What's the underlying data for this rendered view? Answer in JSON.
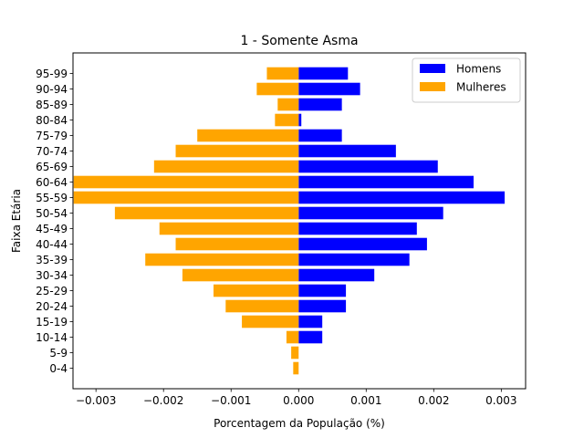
{
  "chart_data": {
    "type": "bar",
    "orientation": "horizontal",
    "title": "1 - Somente Asma",
    "xlabel": "Porcentagem da População (%)",
    "ylabel": "Faixa Etária",
    "categories": [
      "0-4",
      "5-9",
      "10-14",
      "15-19",
      "20-24",
      "25-29",
      "30-34",
      "35-39",
      "40-44",
      "45-49",
      "50-54",
      "55-59",
      "60-64",
      "65-69",
      "70-74",
      "75-79",
      "80-84",
      "85-89",
      "90-94",
      "95-99"
    ],
    "xlim": [
      -0.00334,
      0.00336
    ],
    "xticks": [
      -0.003,
      -0.002,
      -0.001,
      0.0,
      0.001,
      0.002,
      0.003
    ],
    "xtick_labels": [
      "−0.003",
      "−0.002",
      "−0.001",
      "0.000",
      "0.001",
      "0.002",
      "0.003"
    ],
    "grid": false,
    "legend_position": "upper-right",
    "series": [
      {
        "name": "Homens",
        "color": "#0000ff",
        "values": [
          0,
          0,
          0.00035,
          0.00035,
          0.0007,
          0.0007,
          0.00112,
          0.00164,
          0.0019,
          0.00175,
          0.00214,
          0.00305,
          0.00259,
          0.00206,
          0.00144,
          0.00064,
          4e-05,
          0.00064,
          0.00091,
          0.00073
        ]
      },
      {
        "name": "Mulheres",
        "color": "#ffa500",
        "values": [
          -8e-05,
          -0.00011,
          -0.00018,
          -0.00084,
          -0.00108,
          -0.00126,
          -0.00172,
          -0.00227,
          -0.00182,
          -0.00206,
          -0.00272,
          -0.00333,
          -0.00333,
          -0.00214,
          -0.00182,
          -0.0015,
          -0.00035,
          -0.00031,
          -0.00062,
          -0.00047
        ]
      }
    ]
  }
}
